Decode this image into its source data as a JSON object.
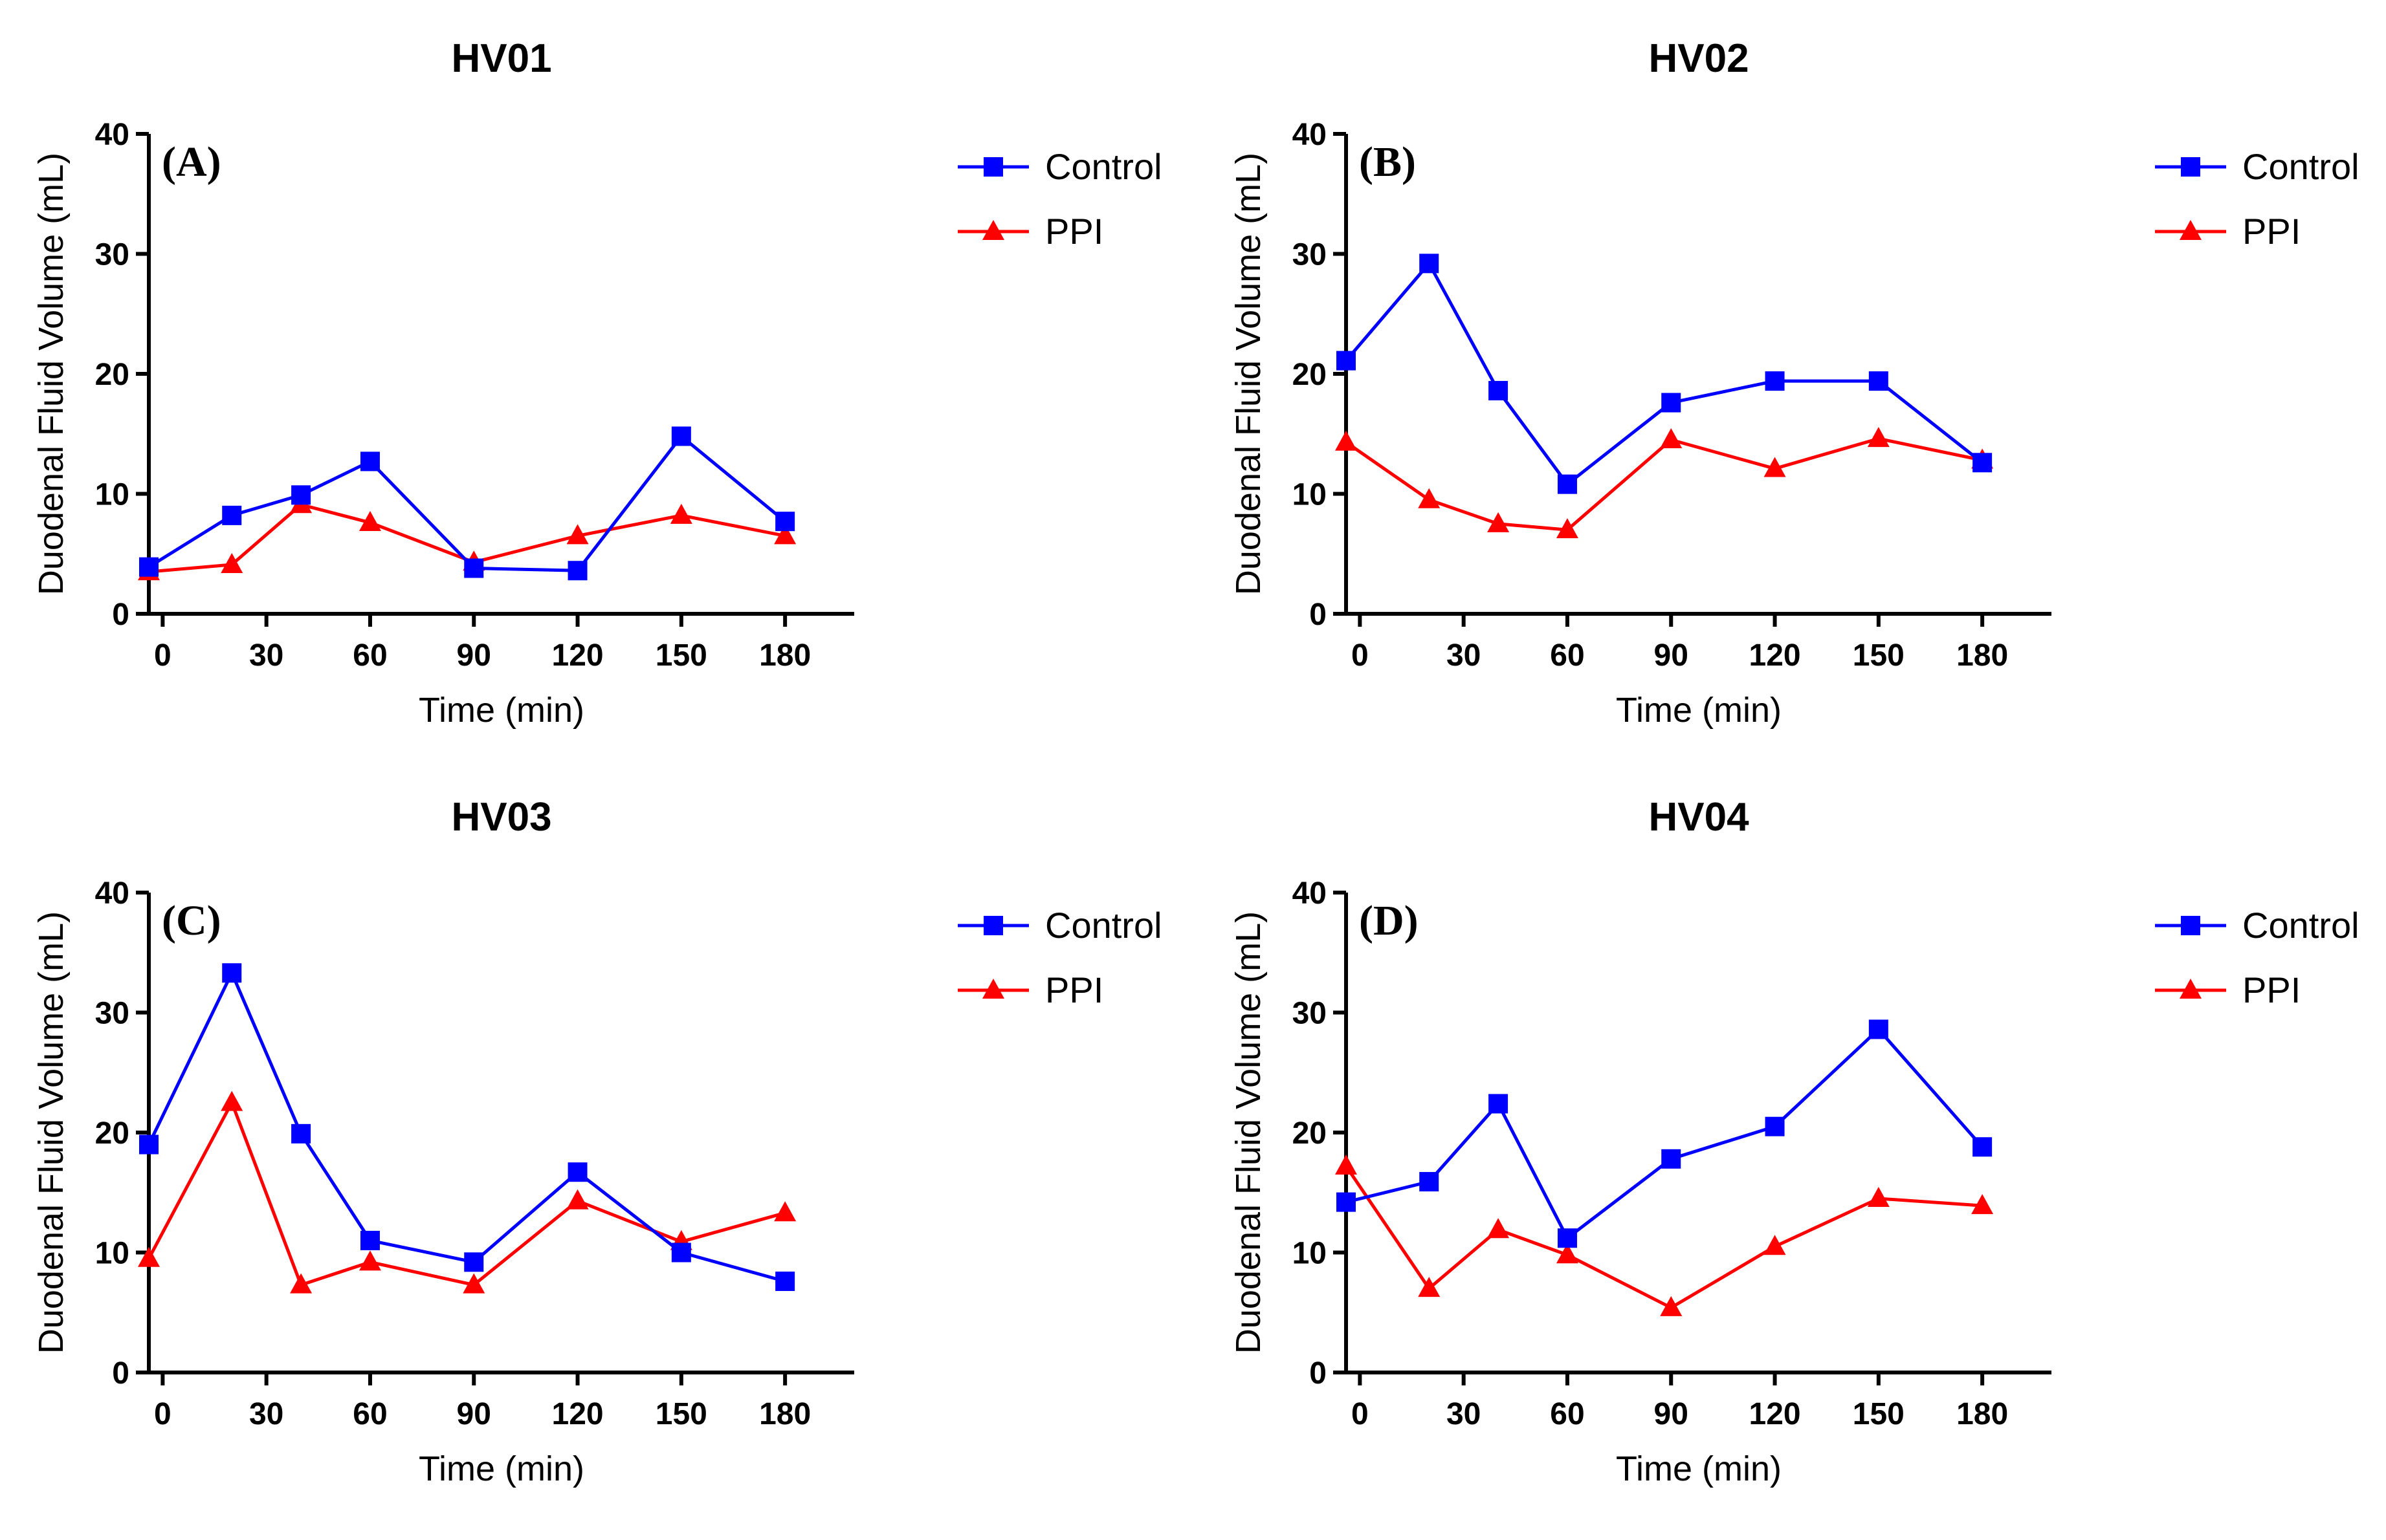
{
  "chart_data": [
    {
      "type": "line",
      "title": "HV01",
      "panel_label": "(A)",
      "xlabel": "Time (min)",
      "ylabel": "Duodenal Fluid Volume (mL)",
      "ylim": [
        0,
        40
      ],
      "xlim": [
        -4,
        200
      ],
      "xticks": [
        0,
        30,
        60,
        90,
        120,
        150,
        180
      ],
      "yticks": [
        0,
        10,
        20,
        30,
        40
      ],
      "legend_position": "right",
      "series": [
        {
          "name": "Control",
          "color": "#0000ff",
          "marker": "square",
          "x": [
            -4,
            20,
            40,
            60,
            90,
            120,
            150,
            180
          ],
          "values": [
            3.9,
            8.2,
            9.9,
            12.7,
            3.8,
            3.6,
            14.8,
            7.7
          ]
        },
        {
          "name": "PPI",
          "color": "#ff0000",
          "marker": "triangle",
          "x": [
            -4,
            20,
            40,
            60,
            90,
            120,
            150,
            180
          ],
          "values": [
            3.5,
            4.1,
            9.1,
            7.6,
            4.3,
            6.5,
            8.2,
            6.5
          ]
        }
      ]
    },
    {
      "type": "line",
      "title": "HV02",
      "panel_label": "(B)",
      "xlabel": "Time (min)",
      "ylabel": "Duodenal Fluid Volume (mL)",
      "ylim": [
        0,
        40
      ],
      "xlim": [
        -4,
        200
      ],
      "xticks": [
        0,
        30,
        60,
        90,
        120,
        150,
        180
      ],
      "yticks": [
        0,
        10,
        20,
        30,
        40
      ],
      "legend_position": "right",
      "series": [
        {
          "name": "Control",
          "color": "#0000ff",
          "marker": "square",
          "x": [
            -4,
            20,
            40,
            60,
            90,
            120,
            150,
            180
          ],
          "values": [
            21.1,
            29.2,
            18.6,
            10.8,
            17.6,
            19.4,
            19.4,
            12.6
          ]
        },
        {
          "name": "PPI",
          "color": "#ff0000",
          "marker": "triangle",
          "x": [
            -4,
            20,
            40,
            60,
            90,
            120,
            150,
            180
          ],
          "values": [
            14.3,
            9.5,
            7.5,
            7.0,
            14.5,
            12.1,
            14.6,
            12.8
          ]
        }
      ]
    },
    {
      "type": "line",
      "title": "HV03",
      "panel_label": "(C)",
      "xlabel": "Time (min)",
      "ylabel": "Duodenal Fluid Volume (mL)",
      "ylim": [
        0,
        40
      ],
      "xlim": [
        -4,
        200
      ],
      "xticks": [
        0,
        30,
        60,
        90,
        120,
        150,
        180
      ],
      "yticks": [
        0,
        10,
        20,
        30,
        40
      ],
      "legend_position": "right",
      "series": [
        {
          "name": "Control",
          "color": "#0000ff",
          "marker": "square",
          "x": [
            -4,
            20,
            40,
            60,
            90,
            120,
            150,
            180
          ],
          "values": [
            19.0,
            33.3,
            19.9,
            11.0,
            9.2,
            16.7,
            10.0,
            7.6
          ]
        },
        {
          "name": "PPI",
          "color": "#ff0000",
          "marker": "triangle",
          "x": [
            -4,
            20,
            40,
            60,
            90,
            120,
            150,
            180
          ],
          "values": [
            9.5,
            22.5,
            7.3,
            9.2,
            7.3,
            14.3,
            10.9,
            13.3
          ]
        }
      ]
    },
    {
      "type": "line",
      "title": "HV04",
      "panel_label": "(D)",
      "xlabel": "Time (min)",
      "ylabel": "Duodenal Fluid Volume (mL)",
      "ylim": [
        0,
        40
      ],
      "xlim": [
        -4,
        200
      ],
      "xticks": [
        0,
        30,
        60,
        90,
        120,
        150,
        180
      ],
      "yticks": [
        0,
        10,
        20,
        30,
        40
      ],
      "legend_position": "right",
      "series": [
        {
          "name": "Control",
          "color": "#0000ff",
          "marker": "square",
          "x": [
            -4,
            20,
            40,
            60,
            90,
            120,
            150,
            180
          ],
          "values": [
            14.2,
            15.9,
            22.4,
            11.2,
            17.8,
            20.5,
            28.6,
            18.8
          ]
        },
        {
          "name": "PPI",
          "color": "#ff0000",
          "marker": "triangle",
          "x": [
            -4,
            20,
            40,
            60,
            90,
            120,
            150,
            180
          ],
          "values": [
            17.2,
            7.0,
            11.9,
            9.8,
            5.4,
            10.5,
            14.5,
            13.9
          ]
        }
      ]
    }
  ]
}
